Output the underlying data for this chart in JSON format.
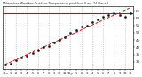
{
  "title": "Milwaukee Weather Outdoor Temperature per Hour (Last 24 Hours)",
  "bg_color": "#ffffff",
  "plot_bg": "#ffffff",
  "grid_color": "#aaaaaa",
  "text_color": "#222222",
  "point_color": "#111111",
  "point_edge_color": "#111111",
  "trend_color": "#dd0000",
  "hline_color": "#dd0000",
  "hours": [
    0,
    1,
    2,
    3,
    4,
    5,
    6,
    7,
    8,
    9,
    10,
    11,
    12,
    13,
    14,
    15,
    16,
    17,
    18,
    19,
    20,
    21,
    22,
    23
  ],
  "temps": [
    28,
    29,
    31,
    33,
    34,
    36,
    38,
    40,
    41,
    43,
    45,
    47,
    50,
    52,
    54,
    55,
    57,
    59,
    61,
    62,
    63,
    62,
    61,
    63
  ],
  "ylim": [
    25,
    68
  ],
  "yticks": [
    30,
    35,
    40,
    45,
    50,
    55,
    60,
    65
  ],
  "ytick_labels": [
    "30",
    "35",
    "40",
    "45",
    "50",
    "55",
    "60",
    "65"
  ],
  "xtick_labels": [
    "12a",
    "1",
    "2",
    "3",
    "4",
    "5",
    "6",
    "7",
    "8",
    "9",
    "10",
    "11",
    "12p",
    "1",
    "2",
    "3",
    "4",
    "5",
    "6",
    "7",
    "8",
    "9",
    "10",
    "11"
  ],
  "max_temp": 63,
  "vgrid_hours": [
    0,
    2,
    4,
    6,
    8,
    10,
    12,
    14,
    16,
    18,
    20,
    22
  ]
}
